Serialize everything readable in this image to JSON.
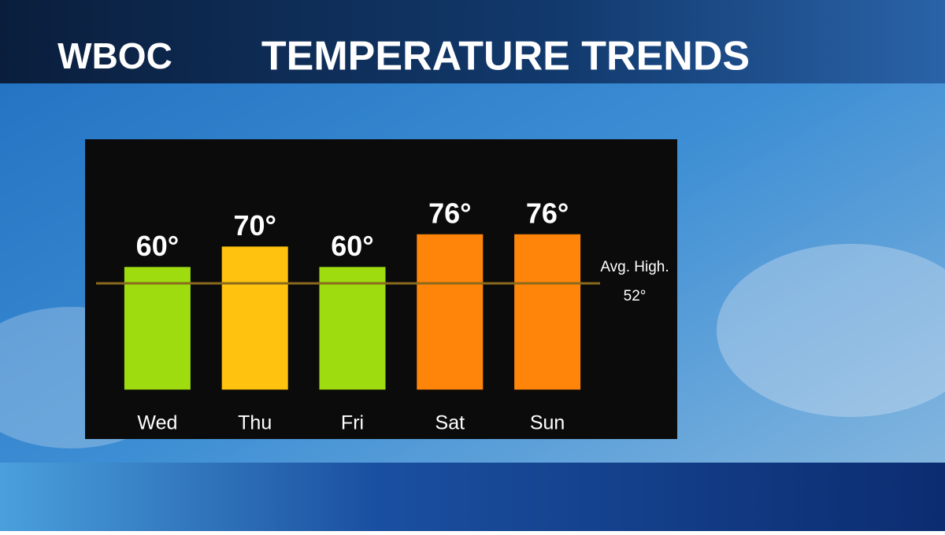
{
  "chart_data": {
    "type": "bar",
    "logo": "WBOC",
    "title": "TEMPERATURE TRENDS",
    "categories": [
      "Wed",
      "Thu",
      "Fri",
      "Sat",
      "Sun"
    ],
    "values": [
      60,
      70,
      60,
      76,
      76
    ],
    "value_labels": [
      "60°",
      "70°",
      "60°",
      "76°",
      "76°"
    ],
    "colors": [
      "#9edc10",
      "#ffc20e",
      "#9edc10",
      "#ff850a",
      "#ff850a"
    ],
    "ylim": [
      -8,
      84
    ],
    "reference_line": {
      "value": 52,
      "label": "Avg. High.",
      "value_label": "52°",
      "color": "#8a6a1c"
    }
  }
}
